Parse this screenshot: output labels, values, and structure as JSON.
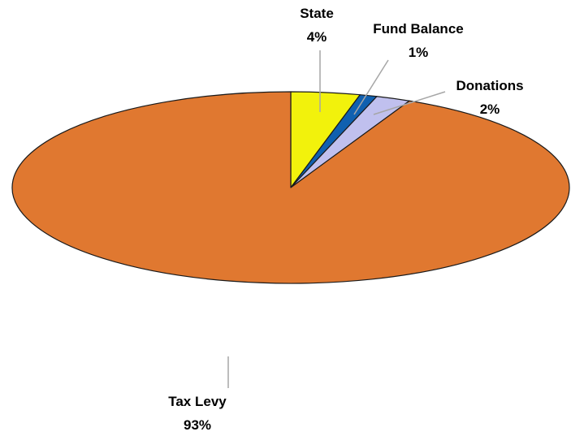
{
  "chart_data": {
    "type": "pie",
    "style": "3d",
    "slices": [
      {
        "label": "State",
        "percent_label": "4%",
        "value": 4,
        "color": "#f2f20c"
      },
      {
        "label": "Fund Balance",
        "percent_label": "1%",
        "value": 1,
        "color": "#1060b0"
      },
      {
        "label": "Donations",
        "percent_label": "2%",
        "value": 2,
        "color": "#c0c0ee"
      },
      {
        "label": "Tax Levy",
        "percent_label": "93%",
        "value": 93,
        "color": "#e07830"
      }
    ],
    "legend": "none"
  }
}
